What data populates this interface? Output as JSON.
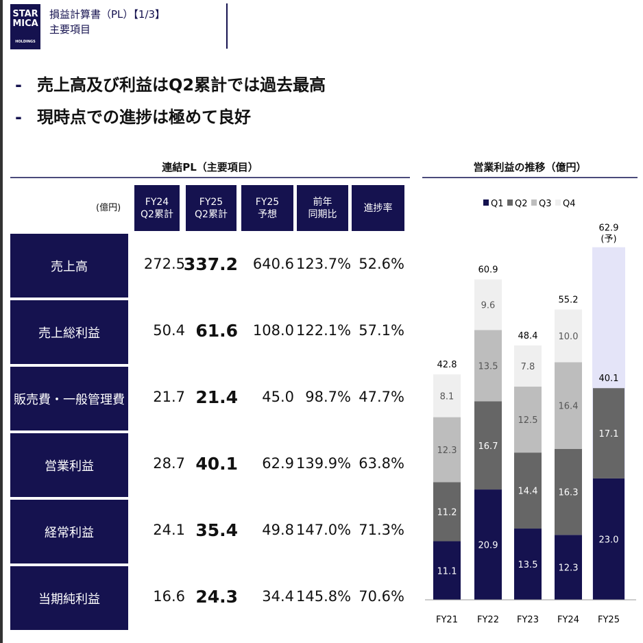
{
  "header": {
    "logo_text": "STAR MICA HOLDINGS",
    "title": "損益計算書（PL）【1/3】",
    "subtitle": "主要項目"
  },
  "bullets": [
    "売上高及び利益はQ2累計では過去最高",
    "現時点での進捗は極めて良好"
  ],
  "bullet_marker": "-",
  "table": {
    "title": "連結PL（主要項目）",
    "unit": "(億円)",
    "columns": [
      "FY24\nQ2累計",
      "FY25\nQ2累計",
      "FY25\n予想",
      "前年\n同期比",
      "進捗率"
    ],
    "rows": [
      {
        "label": "売上高",
        "values": [
          "272.5",
          "337.2",
          "640.6",
          "123.7%",
          "52.6%"
        ]
      },
      {
        "label": "売上総利益",
        "values": [
          "50.4",
          "61.6",
          "108.0",
          "122.1%",
          "57.1%"
        ]
      },
      {
        "label": "販売費・一般管理費",
        "values": [
          "21.7",
          "21.4",
          "45.0",
          "98.7%",
          "47.7%"
        ]
      },
      {
        "label": "営業利益",
        "values": [
          "28.7",
          "40.1",
          "62.9",
          "139.9%",
          "63.8%"
        ]
      },
      {
        "label": "経常利益",
        "values": [
          "24.1",
          "35.4",
          "49.8",
          "147.0%",
          "71.3%"
        ]
      },
      {
        "label": "当期純利益",
        "values": [
          "16.6",
          "24.3",
          "34.4",
          "145.8%",
          "70.6%"
        ]
      }
    ]
  },
  "chart_data": {
    "type": "bar",
    "stacked": true,
    "title": "営業利益の推移（億円）",
    "legend_position": "top",
    "categories": [
      "FY21",
      "FY22",
      "FY23",
      "FY24",
      "FY25"
    ],
    "series": [
      {
        "name": "Q1",
        "color": "#15124f",
        "values": [
          11.1,
          20.9,
          13.5,
          12.3,
          23.0
        ]
      },
      {
        "name": "Q2",
        "color": "#666666",
        "values": [
          11.2,
          16.7,
          14.4,
          16.3,
          17.1
        ]
      },
      {
        "name": "Q3",
        "color": "#bdbdbd",
        "values": [
          12.3,
          13.5,
          12.5,
          16.4,
          null
        ]
      },
      {
        "name": "Q4",
        "color": "#efefef",
        "values": [
          8.1,
          9.6,
          7.8,
          10.0,
          null
        ]
      }
    ],
    "totals": [
      "42.8",
      "60.9",
      "48.4",
      "55.2",
      "40.1"
    ],
    "forecast": {
      "category": "FY25",
      "value": 62.9,
      "label": "62.9",
      "note": "(予)",
      "color": "#e4e4f8"
    }
  }
}
